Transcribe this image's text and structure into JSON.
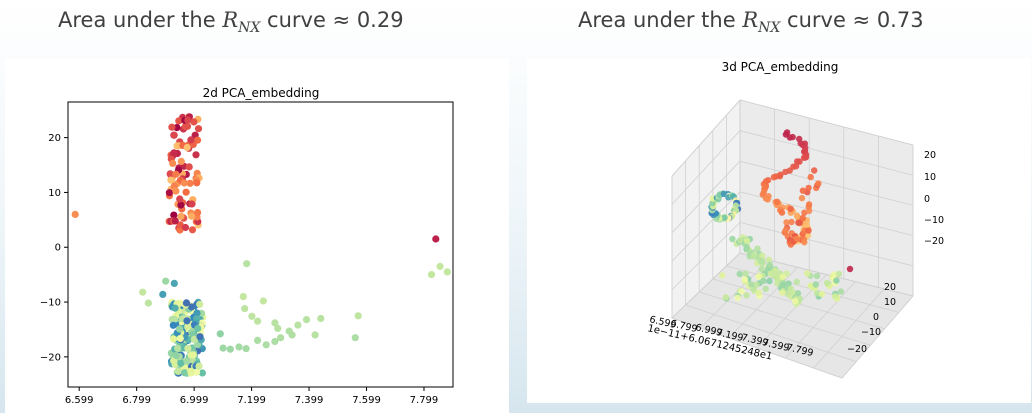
{
  "headlines": {
    "left_prefix": "Area under the ",
    "left_sym": "R",
    "left_sub": "NX",
    "left_suffix": " curve ≈ 0.29",
    "right_prefix": "Area under the ",
    "right_sym": "R",
    "right_sub": "NX",
    "right_suffix": " curve ≈ 0.73"
  },
  "colors": {
    "panel_bg": "#ffffff",
    "slide_gradient_bottom": "#d6e6ee",
    "palette": "Spectral"
  },
  "chart_data": [
    {
      "type": "scatter",
      "title": "2d PCA_embedding",
      "xlabel": "",
      "ylabel": "",
      "xlim": [
        6.56,
        7.9
      ],
      "ylim": [
        -25.5,
        26.5
      ],
      "xticks": [
        "6.599",
        "6.799",
        "6.999",
        "7.199",
        "7.399",
        "7.599",
        "7.799"
      ],
      "yticks": [
        "20",
        "10",
        "0",
        "−10",
        "−20"
      ],
      "grid": false,
      "colormap": "Spectral",
      "clusters": [
        {
          "name": "upper",
          "x_center": 6.965,
          "x_spread": 0.055,
          "y_range": [
            3,
            24
          ],
          "color_range": [
            0.0,
            0.35
          ],
          "count": 95
        },
        {
          "name": "lower",
          "x_center": 6.975,
          "x_spread": 0.055,
          "y_range": [
            -23,
            -10
          ],
          "color_range": [
            0.55,
            0.95
          ],
          "count": 170
        }
      ],
      "points": [
        {
          "x": 6.585,
          "y": 6,
          "c": 0.25
        },
        {
          "x": 7.182,
          "y": -3,
          "c": 0.68
        },
        {
          "x": 7.84,
          "y": 1.5,
          "c": 0.05
        },
        {
          "x": 7.855,
          "y": -3.5,
          "c": 0.66
        },
        {
          "x": 7.88,
          "y": -4.5,
          "c": 0.66
        },
        {
          "x": 7.825,
          "y": -5,
          "c": 0.66
        },
        {
          "x": 7.57,
          "y": -12.5,
          "c": 0.67
        },
        {
          "x": 7.56,
          "y": -16.5,
          "c": 0.7
        },
        {
          "x": 7.42,
          "y": -16,
          "c": 0.68
        },
        {
          "x": 7.44,
          "y": -13,
          "c": 0.68
        },
        {
          "x": 7.36,
          "y": -14.2,
          "c": 0.68
        },
        {
          "x": 7.33,
          "y": -15.3,
          "c": 0.69
        },
        {
          "x": 7.3,
          "y": -16.5,
          "c": 0.69
        },
        {
          "x": 7.28,
          "y": -17.2,
          "c": 0.7
        },
        {
          "x": 7.25,
          "y": -17.8,
          "c": 0.7
        },
        {
          "x": 7.22,
          "y": -17.0,
          "c": 0.7
        },
        {
          "x": 7.18,
          "y": -18.5,
          "c": 0.71
        },
        {
          "x": 7.155,
          "y": -18.2,
          "c": 0.71
        },
        {
          "x": 7.125,
          "y": -18.6,
          "c": 0.72
        },
        {
          "x": 7.1,
          "y": -18.4,
          "c": 0.72
        },
        {
          "x": 7.29,
          "y": -14.8,
          "c": 0.68
        },
        {
          "x": 7.22,
          "y": -13.5,
          "c": 0.67
        },
        {
          "x": 7.2,
          "y": -12.6,
          "c": 0.67
        },
        {
          "x": 7.24,
          "y": -9.8,
          "c": 0.66
        },
        {
          "x": 7.17,
          "y": -9.0,
          "c": 0.66
        },
        {
          "x": 7.175,
          "y": -11.2,
          "c": 0.67
        },
        {
          "x": 7.34,
          "y": -16.0,
          "c": 0.69
        },
        {
          "x": 7.28,
          "y": -13.8,
          "c": 0.68
        },
        {
          "x": 7.39,
          "y": -13.2,
          "c": 0.68
        },
        {
          "x": 7.09,
          "y": -15.8,
          "c": 0.74
        },
        {
          "x": 6.82,
          "y": -8.2,
          "c": 0.66
        },
        {
          "x": 6.84,
          "y": -10.2,
          "c": 0.67
        },
        {
          "x": 6.9,
          "y": -6.2,
          "c": 0.72
        },
        {
          "x": 6.93,
          "y": -6.6,
          "c": 0.85
        },
        {
          "x": 6.89,
          "y": -8.6,
          "c": 0.86
        }
      ]
    },
    {
      "type": "scatter",
      "title": "3d PCA_embedding",
      "xlabel": "1e−11+6.0671245248e1",
      "x_tick_labels": [
        "6.599",
        "6.799",
        "6.999",
        "7.199",
        "7.399",
        "7.599",
        "7.799"
      ],
      "y_tick_labels": [
        "20",
        "10",
        "0",
        "−10",
        "−20"
      ],
      "z_tick_labels": [
        "20",
        "10",
        "0",
        "−10",
        "−20"
      ],
      "grid": true,
      "colormap": "Spectral",
      "description_points": "3D helix-like curve colored from red (top) to green (bottom)"
    }
  ]
}
